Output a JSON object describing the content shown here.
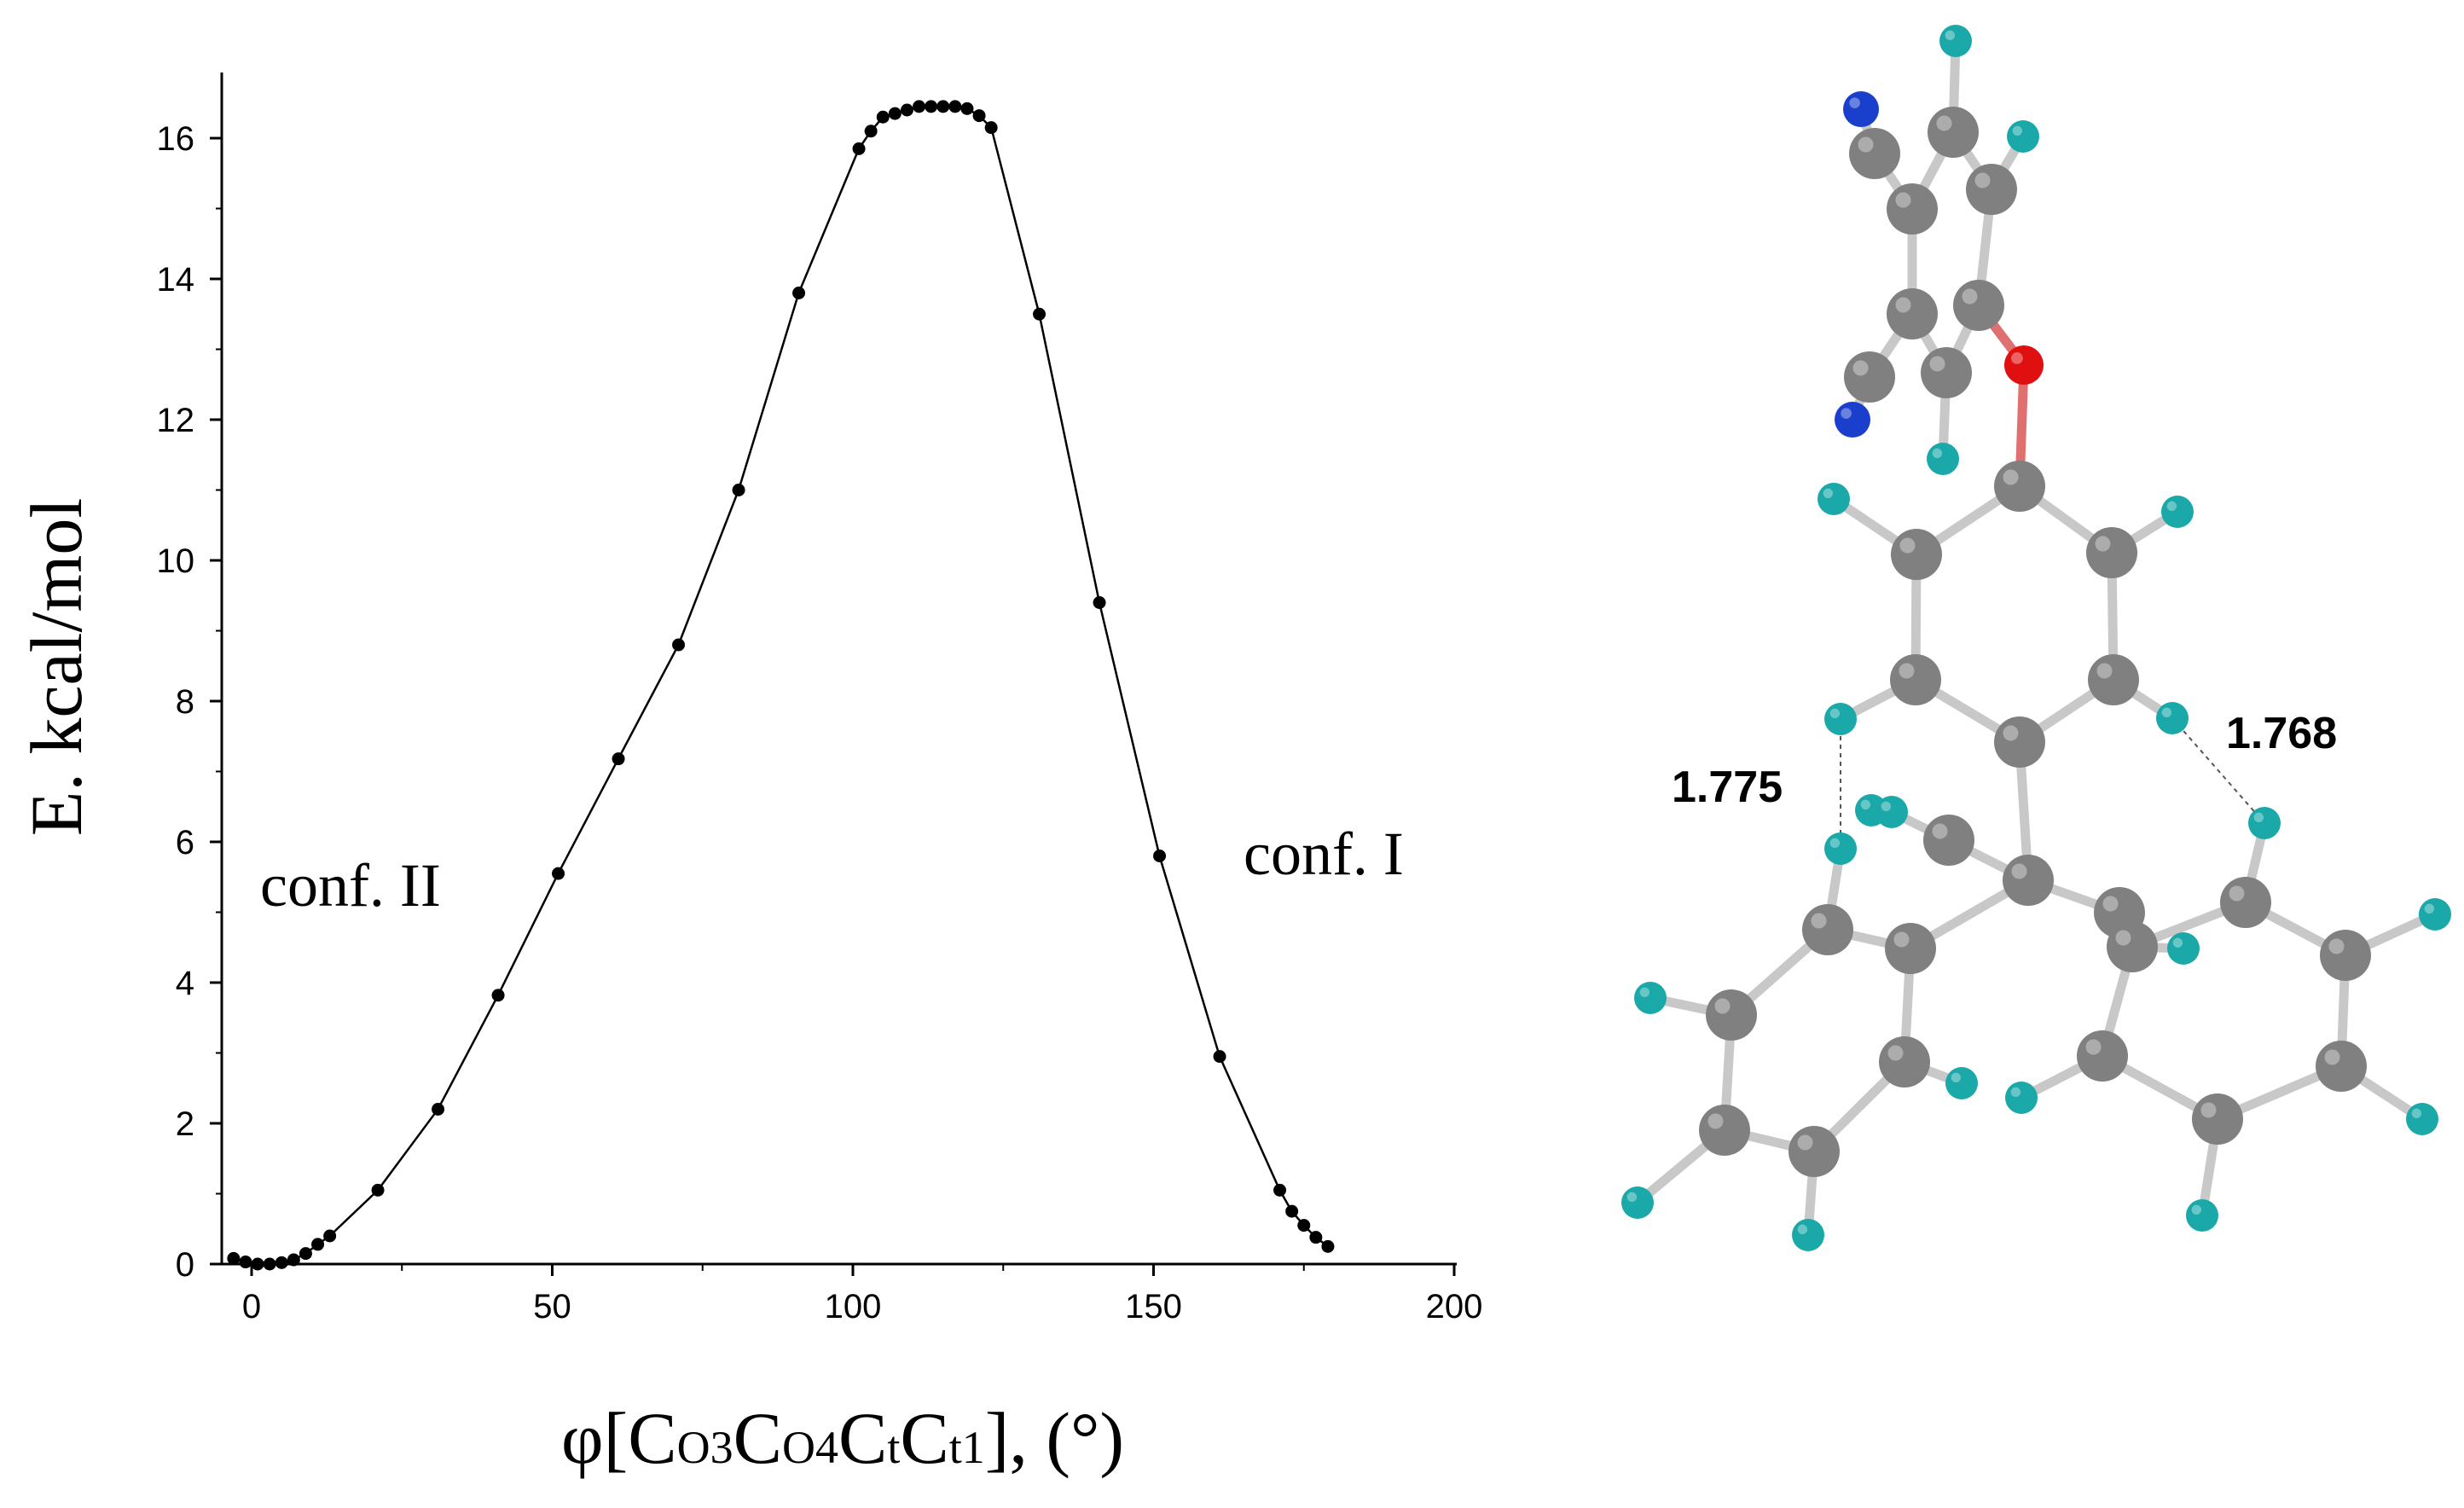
{
  "chart_data": {
    "type": "scatter",
    "line": true,
    "xlabel": "φ[C",
    "xlabel_parts": [
      "φ[C",
      "O3",
      "C",
      "O4",
      "C",
      "t",
      "C",
      "t1",
      "], (°)"
    ],
    "ylabel": "E. kcal/mol",
    "xlim": [
      -5,
      200
    ],
    "ylim": [
      0,
      17
    ],
    "xticks": [
      0,
      50,
      100,
      150,
      200
    ],
    "yticks": [
      0,
      2,
      4,
      6,
      8,
      10,
      12,
      14,
      16
    ],
    "xtick_labels": [
      "0",
      "50",
      "100",
      "150",
      "200"
    ],
    "ytick_labels": [
      "0",
      "2",
      "4",
      "6",
      "8",
      "10",
      "12",
      "14",
      "16"
    ],
    "grid": false,
    "annotations": [
      "conf. II",
      "conf. I"
    ],
    "series": [
      {
        "x": [
          -3,
          -1,
          1,
          3,
          5,
          7,
          9,
          11,
          13,
          21,
          31,
          41,
          51,
          61,
          71,
          81,
          91,
          101,
          103,
          105,
          107,
          109,
          111,
          113,
          115,
          117,
          119,
          121,
          123,
          131,
          141,
          151,
          161,
          171,
          173,
          175,
          177,
          179
        ],
        "y": [
          0.08,
          0.03,
          0.0,
          0.0,
          0.02,
          0.06,
          0.15,
          0.28,
          0.4,
          1.05,
          2.2,
          3.82,
          5.55,
          7.18,
          8.8,
          11.0,
          13.8,
          15.85,
          16.1,
          16.3,
          16.35,
          16.4,
          16.45,
          16.45,
          16.45,
          16.45,
          16.42,
          16.32,
          16.15,
          13.5,
          9.4,
          5.8,
          2.95,
          1.05,
          0.75,
          0.55,
          0.38,
          0.25
        ]
      }
    ]
  },
  "molecule": {
    "distances": [
      "1.775",
      "1.768"
    ],
    "colors": {
      "carbon": "#808080",
      "hydrogen": "#1aa8a8",
      "nitrogen": "#1a3fcc",
      "oxygen": "#e01010",
      "bond": "#c8c8c8"
    }
  }
}
